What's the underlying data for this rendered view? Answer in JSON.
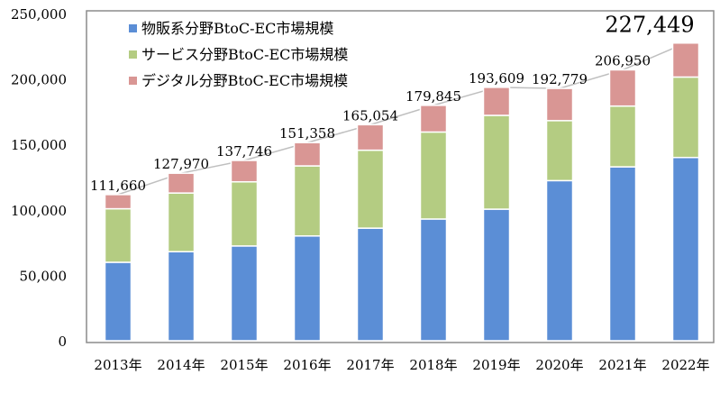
{
  "chart_data": {
    "type": "bar",
    "stacked": true,
    "categories": [
      "2013年",
      "2014年",
      "2015年",
      "2016年",
      "2017年",
      "2018年",
      "2019年",
      "2020年",
      "2021年",
      "2022年"
    ],
    "series": [
      {
        "name": "物販系分野BtoC-EC市場規模",
        "color": "#5b8ed6",
        "values": [
          59931,
          68043,
          72398,
          80043,
          86008,
          92992,
          100515,
          122333,
          132865,
          139997
        ]
      },
      {
        "name": "サービス分野BtoC-EC市場規模",
        "color": "#b4cc82",
        "values": [
          40911,
          44816,
          49014,
          53532,
          59568,
          66471,
          71672,
          45832,
          46424,
          61477
        ]
      },
      {
        "name": "デジタル分野BtoC-EC市場規模",
        "color": "#d99694",
        "values": [
          10818,
          15111,
          16334,
          17782,
          19478,
          20382,
          21422,
          24614,
          27661,
          25974
        ]
      }
    ],
    "totals": [
      111660,
      127970,
      137746,
      151358,
      165054,
      179845,
      193609,
      192779,
      206950,
      227449
    ],
    "total_labels": [
      "111,660",
      "127,970",
      "137,746",
      "151,358",
      "165,054",
      "179,845",
      "193,609",
      "192,779",
      "206,950",
      "227,449"
    ],
    "y_ticks": [
      0,
      50000,
      100000,
      150000,
      200000,
      250000
    ],
    "y_tick_labels": [
      "0",
      "50,000",
      "100,000",
      "150,000",
      "200,000",
      "250,000"
    ],
    "ylim": [
      0,
      250000
    ],
    "grid": false,
    "legend": "top-left",
    "total_line_color": "#bfbfbf"
  }
}
